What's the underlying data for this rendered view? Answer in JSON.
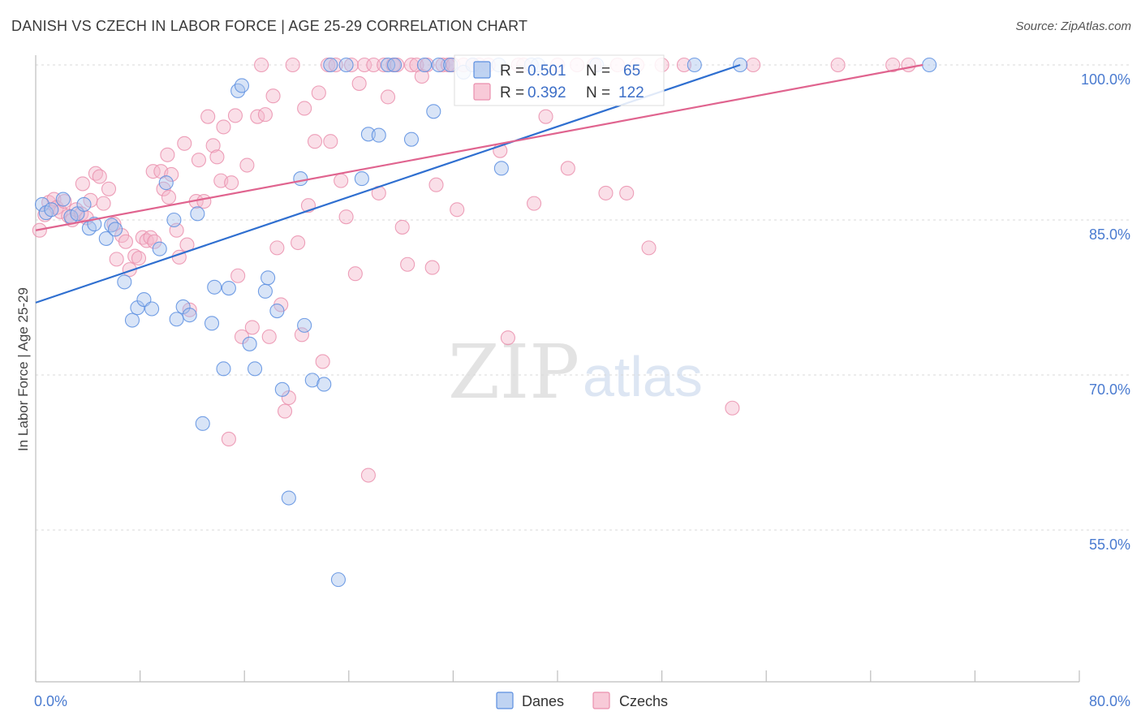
{
  "title": "DANISH VS CZECH IN LABOR FORCE | AGE 25-29 CORRELATION CHART",
  "source": "Source: ZipAtlas.com",
  "watermark": {
    "zip": "ZIP",
    "atlas": "atlas"
  },
  "colors": {
    "danes_fill": "#a9c4ee",
    "danes_stroke": "#5b8ee0",
    "danes_line": "#2f6fd0",
    "czechs_fill": "#f5b8cb",
    "czechs_stroke": "#ea8fad",
    "czechs_line": "#e0648f",
    "tick_label": "#4a7bd0"
  },
  "legend": {
    "rows": [
      {
        "r_label": "R =",
        "r_value": "0.501",
        "n_label": "N =",
        "n_value": "65"
      },
      {
        "r_label": "R =",
        "r_value": "0.392",
        "n_label": "N =",
        "n_value": "122"
      }
    ]
  },
  "bottom_legend": [
    "Danes",
    "Czechs"
  ],
  "chart_data": {
    "type": "scatter",
    "title": "DANISH VS CZECH IN LABOR FORCE | AGE 25-29 CORRELATION CHART",
    "xlabel": "",
    "ylabel": "In Labor Force | Age 25-29",
    "xlim": [
      0,
      80
    ],
    "ylim": [
      40,
      102
    ],
    "x_tick_labels": [
      {
        "value": 0,
        "label": "0.0%"
      },
      {
        "value": 80,
        "label": "80.0%"
      }
    ],
    "y_tick_labels": [
      {
        "value": 100,
        "label": "100.0%"
      },
      {
        "value": 85,
        "label": "85.0%"
      },
      {
        "value": 70,
        "label": "70.0%"
      },
      {
        "value": 55,
        "label": "55.0%"
      }
    ],
    "y_grid_values": [
      100,
      85,
      70,
      55
    ],
    "x_tick_values": [
      0,
      8,
      16,
      24,
      32,
      40,
      48,
      56,
      64,
      72,
      80
    ],
    "series": [
      {
        "name": "Danes",
        "R": 0.501,
        "N": 65,
        "trend": {
          "x0": 0,
          "y0": 77.0,
          "x1": 54,
          "y1": 100.0
        },
        "points": [
          [
            0.5,
            86.5
          ],
          [
            0.8,
            85.7
          ],
          [
            1.2,
            86.0
          ],
          [
            2.1,
            87.0
          ],
          [
            2.7,
            85.3
          ],
          [
            3.2,
            85.6
          ],
          [
            3.7,
            86.5
          ],
          [
            4.1,
            84.2
          ],
          [
            4.5,
            84.6
          ],
          [
            5.4,
            83.2
          ],
          [
            5.8,
            84.5
          ],
          [
            6.1,
            84.1
          ],
          [
            6.8,
            79.0
          ],
          [
            7.4,
            75.3
          ],
          [
            7.8,
            76.5
          ],
          [
            8.3,
            77.3
          ],
          [
            8.9,
            76.4
          ],
          [
            9.5,
            82.2
          ],
          [
            10.0,
            88.6
          ],
          [
            10.6,
            85.0
          ],
          [
            10.8,
            75.4
          ],
          [
            11.3,
            76.6
          ],
          [
            11.8,
            75.8
          ],
          [
            12.4,
            85.6
          ],
          [
            12.8,
            65.3
          ],
          [
            13.5,
            75.0
          ],
          [
            13.7,
            78.5
          ],
          [
            14.4,
            70.6
          ],
          [
            14.8,
            78.4
          ],
          [
            15.5,
            97.5
          ],
          [
            15.8,
            98.0
          ],
          [
            16.4,
            73.0
          ],
          [
            16.8,
            70.6
          ],
          [
            17.6,
            78.1
          ],
          [
            17.8,
            79.4
          ],
          [
            18.5,
            76.2
          ],
          [
            18.9,
            68.6
          ],
          [
            19.4,
            58.1
          ],
          [
            20.3,
            89.0
          ],
          [
            20.6,
            74.8
          ],
          [
            21.2,
            69.5
          ],
          [
            22.1,
            69.1
          ],
          [
            22.6,
            100.0
          ],
          [
            23.2,
            50.2
          ],
          [
            23.8,
            100.0
          ],
          [
            25.0,
            89.0
          ],
          [
            25.5,
            93.3
          ],
          [
            26.3,
            93.2
          ],
          [
            27.0,
            100.0
          ],
          [
            27.5,
            100.0
          ],
          [
            28.8,
            92.8
          ],
          [
            29.8,
            100.0
          ],
          [
            30.5,
            95.5
          ],
          [
            30.9,
            100.0
          ],
          [
            31.8,
            100.0
          ],
          [
            32.8,
            99.3
          ],
          [
            33.5,
            100.0
          ],
          [
            35.5,
            100.0
          ],
          [
            35.7,
            90.0
          ],
          [
            38.0,
            100.0
          ],
          [
            38.5,
            100.0
          ],
          [
            43.0,
            100.0
          ],
          [
            50.5,
            100.0
          ],
          [
            54.0,
            100.0
          ],
          [
            68.5,
            100.0
          ]
        ]
      },
      {
        "name": "Czechs",
        "R": 0.392,
        "N": 122,
        "trend": {
          "x0": 0,
          "y0": 84.0,
          "x1": 68,
          "y1": 100.0
        },
        "points": [
          [
            0.3,
            84.0
          ],
          [
            0.7,
            85.5
          ],
          [
            1.0,
            86.7
          ],
          [
            1.4,
            87.0
          ],
          [
            1.6,
            86.2
          ],
          [
            1.9,
            85.8
          ],
          [
            2.2,
            86.8
          ],
          [
            2.5,
            85.4
          ],
          [
            2.8,
            85.0
          ],
          [
            3.1,
            86.0
          ],
          [
            3.5,
            85.6
          ],
          [
            3.6,
            88.5
          ],
          [
            3.9,
            85.2
          ],
          [
            4.2,
            86.9
          ],
          [
            4.6,
            89.5
          ],
          [
            4.9,
            89.2
          ],
          [
            5.2,
            86.6
          ],
          [
            5.6,
            88.0
          ],
          [
            6.0,
            84.6
          ],
          [
            6.2,
            81.2
          ],
          [
            6.6,
            83.5
          ],
          [
            6.9,
            82.9
          ],
          [
            7.2,
            80.2
          ],
          [
            7.6,
            81.5
          ],
          [
            7.9,
            81.3
          ],
          [
            8.2,
            83.3
          ],
          [
            8.5,
            83.0
          ],
          [
            8.8,
            83.3
          ],
          [
            9.1,
            82.9
          ],
          [
            9.0,
            89.7
          ],
          [
            9.6,
            89.7
          ],
          [
            9.8,
            88.0
          ],
          [
            10.1,
            91.3
          ],
          [
            10.2,
            87.2
          ],
          [
            10.4,
            89.4
          ],
          [
            10.8,
            84.0
          ],
          [
            11.0,
            81.4
          ],
          [
            11.4,
            92.4
          ],
          [
            11.6,
            82.6
          ],
          [
            11.8,
            76.3
          ],
          [
            12.3,
            86.8
          ],
          [
            12.5,
            90.8
          ],
          [
            12.9,
            86.8
          ],
          [
            13.2,
            95.0
          ],
          [
            13.6,
            92.2
          ],
          [
            13.9,
            91.1
          ],
          [
            14.2,
            88.8
          ],
          [
            14.4,
            94.0
          ],
          [
            14.8,
            63.8
          ],
          [
            15.0,
            88.6
          ],
          [
            15.3,
            95.1
          ],
          [
            15.5,
            79.6
          ],
          [
            15.8,
            73.7
          ],
          [
            16.2,
            90.3
          ],
          [
            16.6,
            74.6
          ],
          [
            17.0,
            95.0
          ],
          [
            17.3,
            100.0
          ],
          [
            17.6,
            95.2
          ],
          [
            17.9,
            73.7
          ],
          [
            18.2,
            97.0
          ],
          [
            18.5,
            82.3
          ],
          [
            18.8,
            76.8
          ],
          [
            19.1,
            66.5
          ],
          [
            19.4,
            67.8
          ],
          [
            19.7,
            100.0
          ],
          [
            20.1,
            82.8
          ],
          [
            20.4,
            73.9
          ],
          [
            20.6,
            95.8
          ],
          [
            20.9,
            86.4
          ],
          [
            21.4,
            92.6
          ],
          [
            21.7,
            97.3
          ],
          [
            22.0,
            71.3
          ],
          [
            22.4,
            100.0
          ],
          [
            22.6,
            92.6
          ],
          [
            23.0,
            100.0
          ],
          [
            23.4,
            88.8
          ],
          [
            23.8,
            85.3
          ],
          [
            24.2,
            100.0
          ],
          [
            24.5,
            79.8
          ],
          [
            24.8,
            98.2
          ],
          [
            25.2,
            100.0
          ],
          [
            25.5,
            60.3
          ],
          [
            25.9,
            100.0
          ],
          [
            26.3,
            87.6
          ],
          [
            26.7,
            100.0
          ],
          [
            27.0,
            96.9
          ],
          [
            27.4,
            100.0
          ],
          [
            27.7,
            100.0
          ],
          [
            28.1,
            84.3
          ],
          [
            28.5,
            80.7
          ],
          [
            28.8,
            100.0
          ],
          [
            29.2,
            100.0
          ],
          [
            29.6,
            98.9
          ],
          [
            30.0,
            100.0
          ],
          [
            30.4,
            80.4
          ],
          [
            30.7,
            88.4
          ],
          [
            31.2,
            100.0
          ],
          [
            31.6,
            100.0
          ],
          [
            32.0,
            100.0
          ],
          [
            32.3,
            86.0
          ],
          [
            32.8,
            100.0
          ],
          [
            33.5,
            100.0
          ],
          [
            34.0,
            100.0
          ],
          [
            34.7,
            100.0
          ],
          [
            35.6,
            91.7
          ],
          [
            36.2,
            73.6
          ],
          [
            37.0,
            100.0
          ],
          [
            37.4,
            100.0
          ],
          [
            38.2,
            86.6
          ],
          [
            39.1,
            95.0
          ],
          [
            40.0,
            100.0
          ],
          [
            40.8,
            90.0
          ],
          [
            41.5,
            100.0
          ],
          [
            42.8,
            100.0
          ],
          [
            43.7,
            87.6
          ],
          [
            44.6,
            100.0
          ],
          [
            45.3,
            87.6
          ],
          [
            46.1,
            100.0
          ],
          [
            47.0,
            82.3
          ],
          [
            48.0,
            100.0
          ],
          [
            49.7,
            100.0
          ],
          [
            53.4,
            66.8
          ],
          [
            55.0,
            100.0
          ],
          [
            61.5,
            100.0
          ],
          [
            65.7,
            100.0
          ],
          [
            66.9,
            100.0
          ]
        ]
      }
    ]
  }
}
